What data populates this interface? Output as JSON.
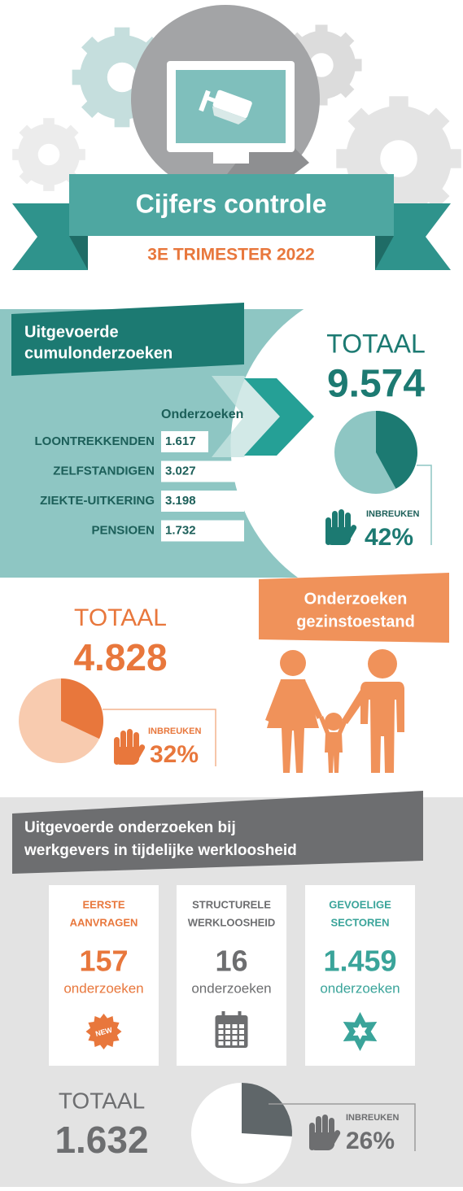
{
  "header": {
    "title": "Cijfers controle",
    "subtitle": "3E TRIMESTER 2022"
  },
  "cumul": {
    "title_lines": [
      "Uitgevoerde",
      "cumulonderzoeken"
    ],
    "column_header": "Onderzoeken",
    "rows": [
      {
        "label": "LOONTREKKENDEN",
        "value": "1.617"
      },
      {
        "label": "ZELFSTANDIGEN",
        "value": "3.027"
      },
      {
        "label": "ZIEKTE-UITKERING",
        "value": "3.198"
      },
      {
        "label": "PENSIOEN",
        "value": "1.732"
      }
    ],
    "total_label": "TOTAAL",
    "total": "9.574",
    "infractions_label": "INBREUKEN",
    "infractions": {
      "value": 42,
      "label": "42%"
    }
  },
  "gezin": {
    "title_lines": [
      "Onderzoeken",
      "gezinstoestand"
    ],
    "total_label": "TOTAAL",
    "total": "4.828",
    "infractions_label": "INBREUKEN",
    "infractions": {
      "value": 32,
      "label": "32%"
    }
  },
  "tijdelijk": {
    "title_lines": [
      "Uitgevoerde onderzoeken bij",
      "werkgevers in tijdelijke werkloosheid"
    ],
    "cards": [
      {
        "title_lines": [
          "EERSTE",
          "AANVRAGEN"
        ],
        "count": "157",
        "unit": "onderzoeken",
        "badge": "NEW"
      },
      {
        "title_lines": [
          "STRUCTURELE",
          "WERKLOOSHEID"
        ],
        "count": "16",
        "unit": "onderzoeken"
      },
      {
        "title_lines": [
          "GEVOELIGE",
          "SECTOREN"
        ],
        "count": "1.459",
        "unit": "onderzoeken"
      }
    ],
    "total_label": "TOTAAL",
    "total": "1.632",
    "infractions_label": "INBREUKEN",
    "infractions": {
      "value": 26,
      "label": "26%"
    }
  }
}
